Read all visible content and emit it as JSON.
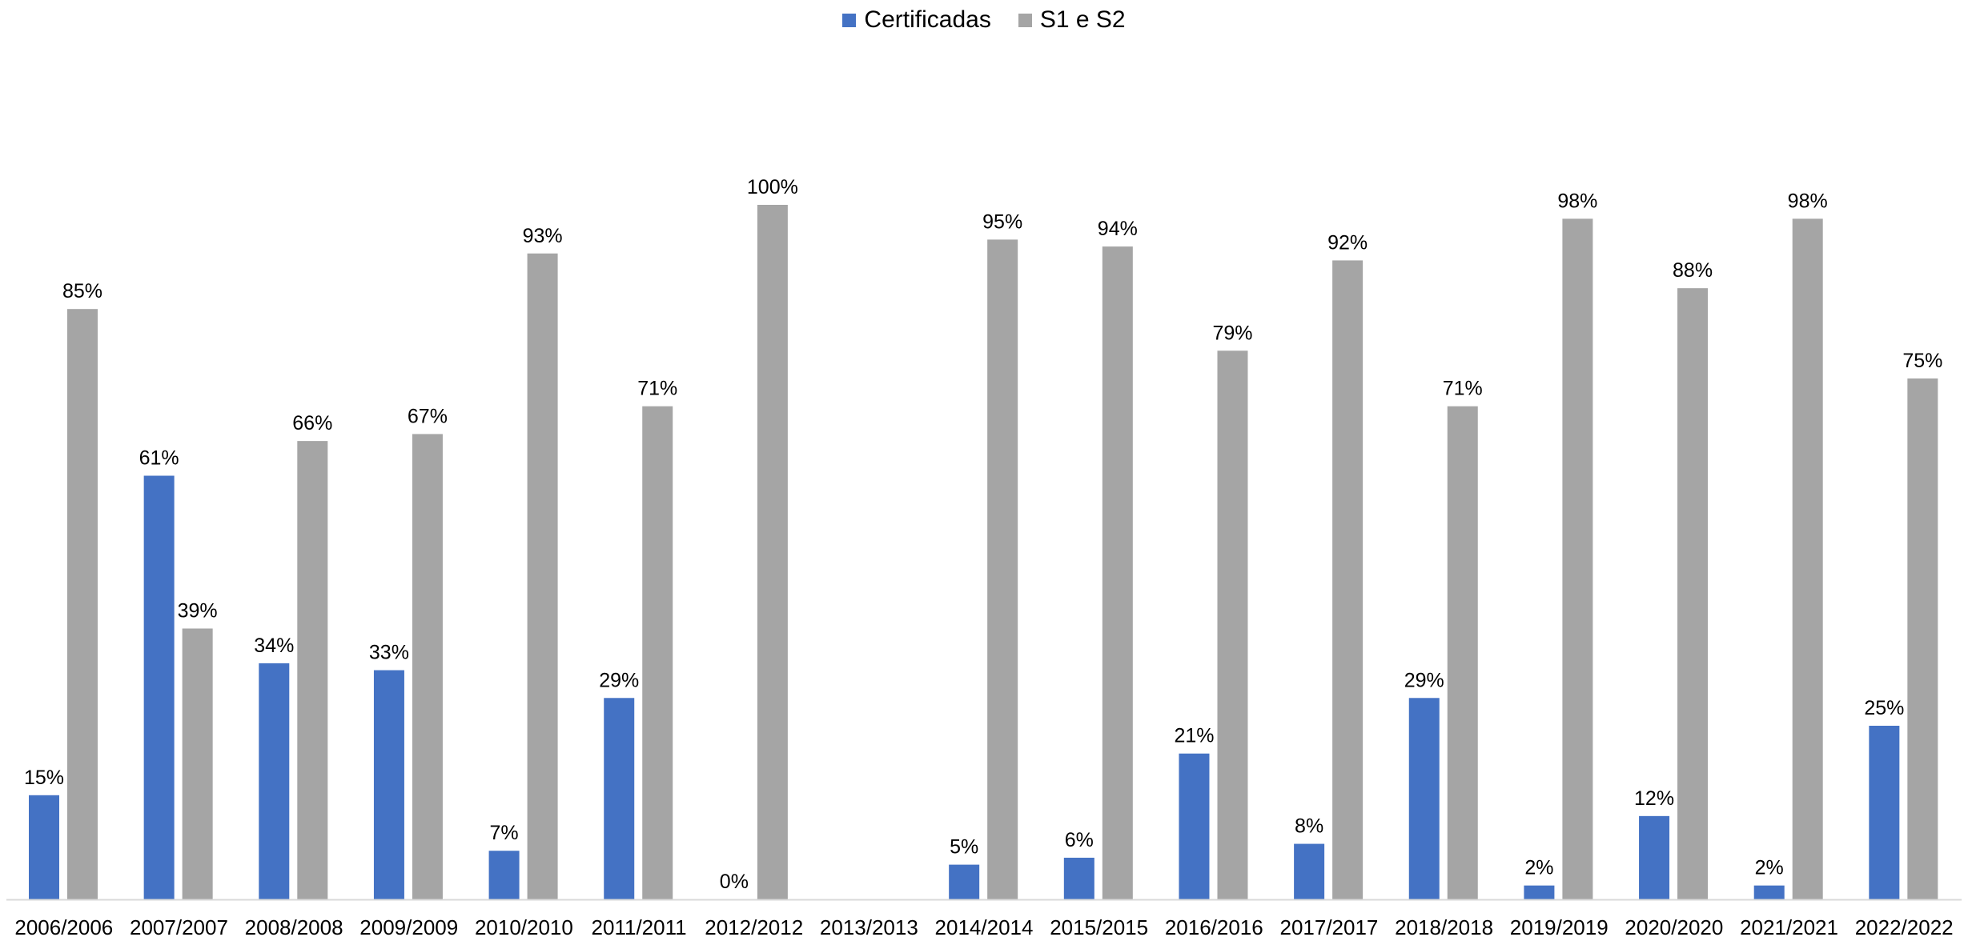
{
  "chart_data": {
    "type": "bar",
    "categories": [
      "2006/2006",
      "2007/2007",
      "2008/2008",
      "2009/2009",
      "2010/2010",
      "2011/2011",
      "2012/2012",
      "2013/2013",
      "2014/2014",
      "2015/2015",
      "2016/2016",
      "2017/2017",
      "2018/2018",
      "2019/2019",
      "2020/2020",
      "2021/2021",
      "2022/2022"
    ],
    "series": [
      {
        "name": "Certificadas",
        "color": "#4472c4",
        "values": [
          15,
          61,
          34,
          33,
          7,
          29,
          0,
          null,
          5,
          6,
          21,
          8,
          29,
          2,
          12,
          2,
          25
        ],
        "labels": [
          "15%",
          "61%",
          "34%",
          "33%",
          "7%",
          "29%",
          "0%",
          "",
          "5%",
          "6%",
          "21%",
          "8%",
          "29%",
          "2%",
          "12%",
          "2%",
          "25%"
        ]
      },
      {
        "name": "S1 e S2",
        "color": "#a5a5a5",
        "values": [
          85,
          39,
          66,
          67,
          93,
          71,
          100,
          null,
          95,
          94,
          79,
          92,
          71,
          98,
          88,
          98,
          75
        ],
        "labels": [
          "85%",
          "39%",
          "66%",
          "67%",
          "93%",
          "71%",
          "100%",
          "",
          "95%",
          "94%",
          "79%",
          "92%",
          "71%",
          "98%",
          "88%",
          "98%",
          "75%"
        ]
      }
    ],
    "ylim": [
      0,
      100
    ],
    "grid": false,
    "legend_position": "top-center",
    "title": "",
    "xlabel": "",
    "ylabel": ""
  }
}
